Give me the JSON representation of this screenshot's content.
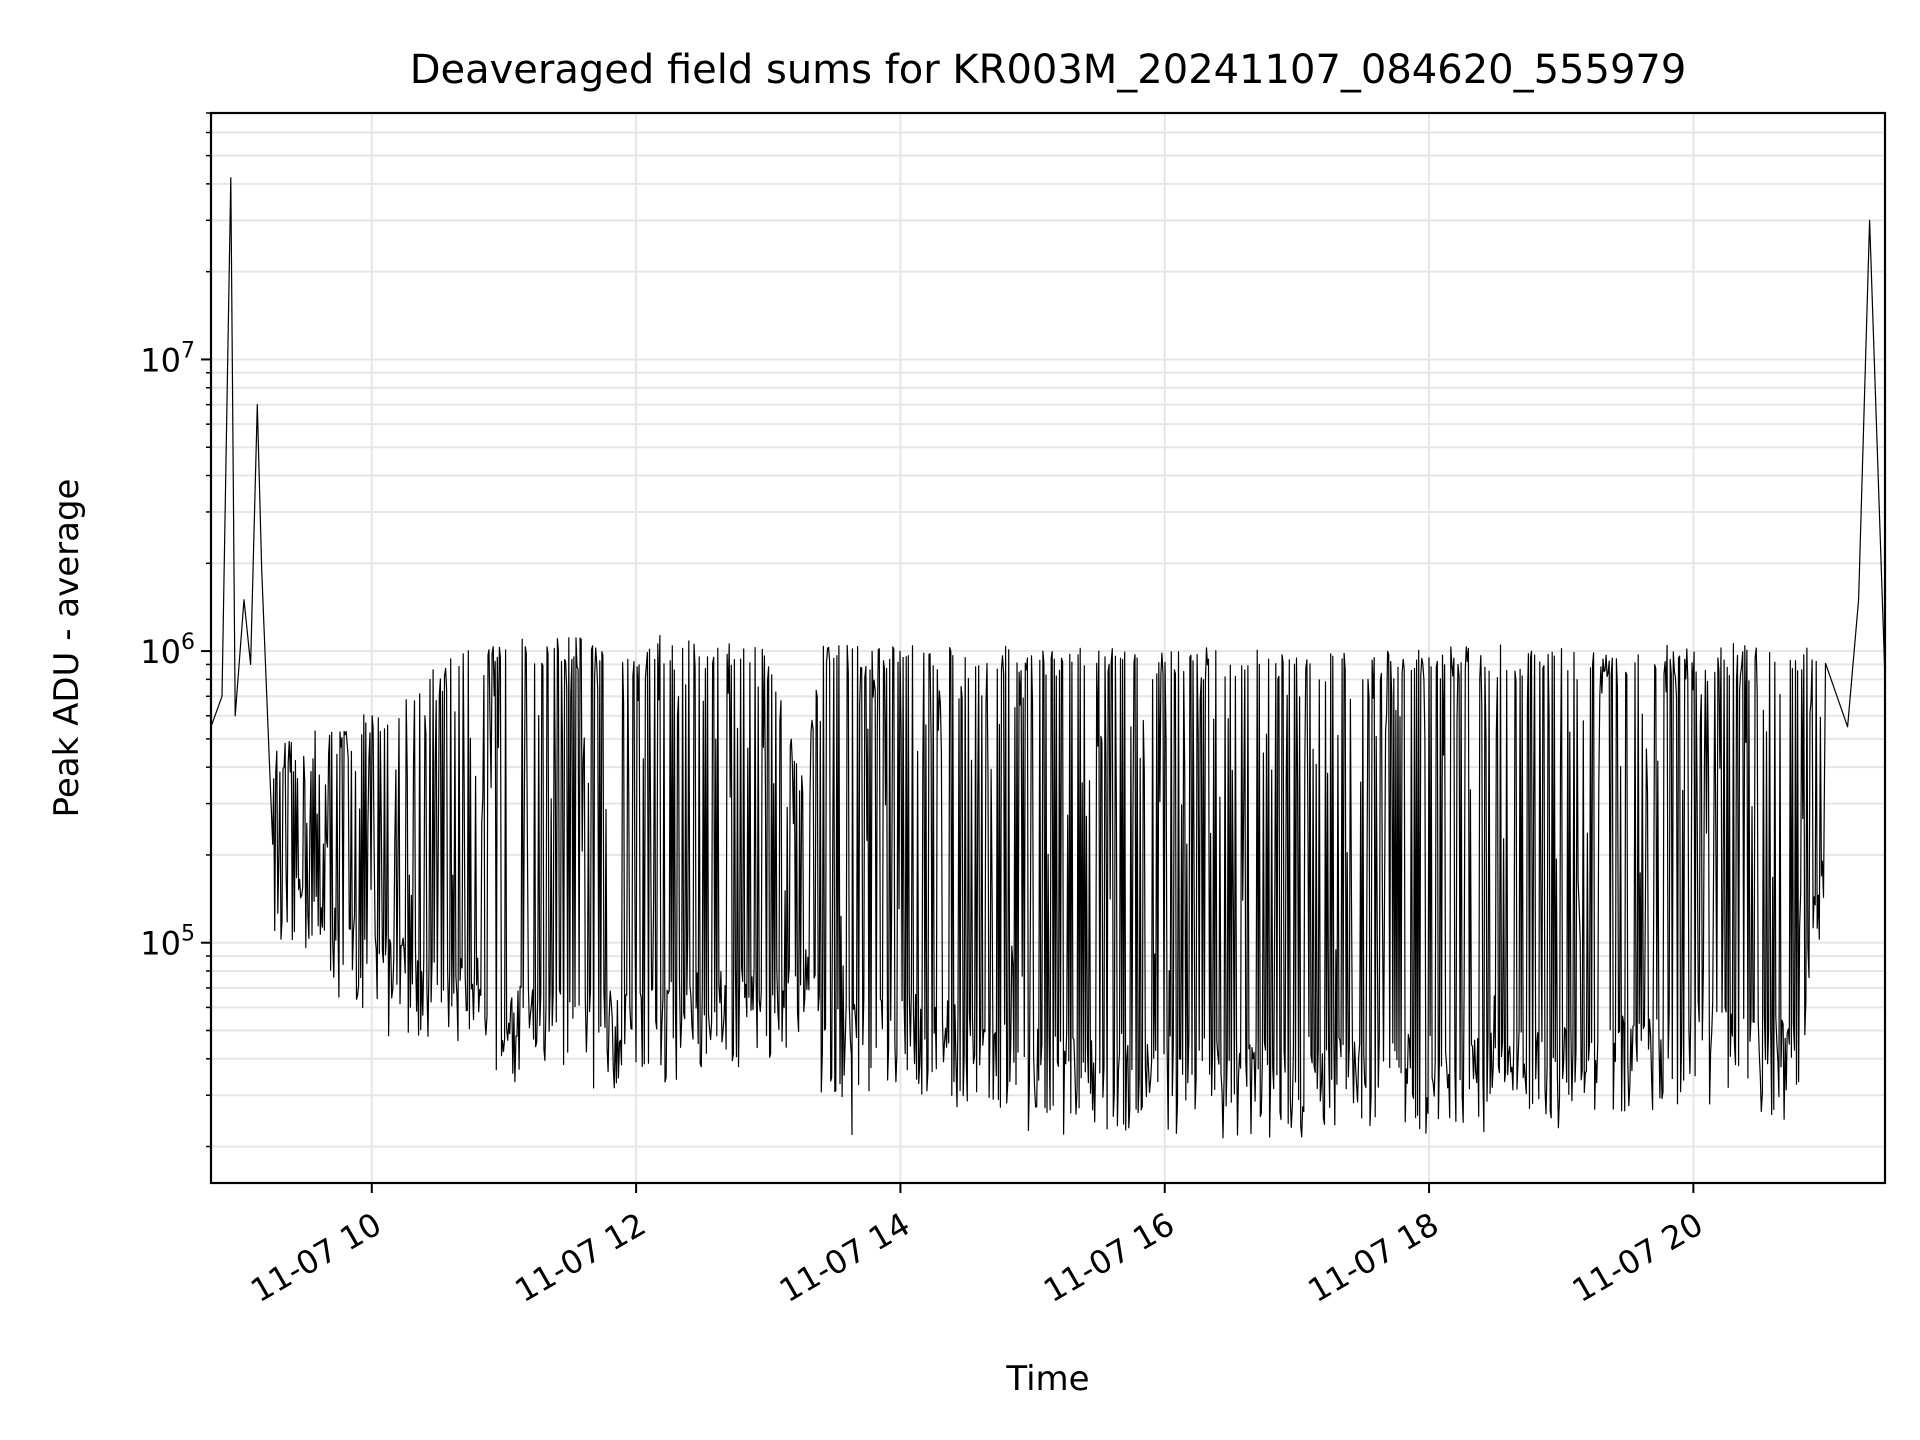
{
  "chart_data": {
    "type": "line",
    "title": "Deaveraged field sums for KR003M_20241107_084620_555979",
    "xlabel": "Time",
    "ylabel": "Peak ADU - average",
    "y_scale": "log",
    "grid": true,
    "legend": "none",
    "line_color": "#000000",
    "grid_color": "#e6e6e6",
    "xlim": [
      "2024-11-07 08:47",
      "2024-11-07 21:27"
    ],
    "ylim": [
      15000,
      70000000
    ],
    "x_ticks": [
      {
        "value": "2024-11-07 10:00",
        "label": "11-07 10"
      },
      {
        "value": "2024-11-07 12:00",
        "label": "11-07 12"
      },
      {
        "value": "2024-11-07 14:00",
        "label": "11-07 14"
      },
      {
        "value": "2024-11-07 16:00",
        "label": "11-07 16"
      },
      {
        "value": "2024-11-07 18:00",
        "label": "11-07 18"
      },
      {
        "value": "2024-11-07 20:00",
        "label": "11-07 20"
      }
    ],
    "y_ticks": [
      {
        "value": 100000,
        "base": "10",
        "exp": "5"
      },
      {
        "value": 1000000,
        "base": "10",
        "exp": "6"
      },
      {
        "value": 10000000,
        "base": "10",
        "exp": "7"
      }
    ],
    "series": [
      {
        "x": [
          "2024-11-07 08:47",
          "2024-11-07 08:52",
          "2024-11-07 08:56",
          "2024-11-07 08:58",
          "2024-11-07 09:02",
          "2024-11-07 09:05",
          "2024-11-07 09:08",
          "2024-11-07 09:10",
          "2024-11-07 09:15",
          "2024-11-07 09:20",
          "2024-11-07 09:30",
          "2024-11-07 09:45",
          "2024-11-07 10:00",
          "2024-11-07 10:15",
          "2024-11-07 10:30",
          "2024-11-07 10:45",
          "2024-11-07 11:00",
          "2024-11-07 11:30",
          "2024-11-07 12:00",
          "2024-11-07 12:30",
          "2024-11-07 13:00",
          "2024-11-07 13:15",
          "2024-11-07 13:30",
          "2024-11-07 13:38",
          "2024-11-07 14:00",
          "2024-11-07 14:30",
          "2024-11-07 15:00",
          "2024-11-07 15:30",
          "2024-11-07 16:00",
          "2024-11-07 16:30",
          "2024-11-07 17:00",
          "2024-11-07 17:30",
          "2024-11-07 18:00",
          "2024-11-07 18:30",
          "2024-11-07 19:00",
          "2024-11-07 19:30",
          "2024-11-07 19:45",
          "2024-11-07 20:00",
          "2024-11-07 20:30",
          "2024-11-07 20:50",
          "2024-11-07 21:00",
          "2024-11-07 21:10",
          "2024-11-07 21:15",
          "2024-11-07 21:20",
          "2024-11-07 21:27"
        ],
        "y": [
          550000,
          700000,
          42000000,
          600000,
          1500000,
          900000,
          7000000,
          1900000,
          400000,
          250000,
          120000,
          150000,
          110000,
          120000,
          130000,
          90000,
          55000,
          60000,
          60000,
          65000,
          90000,
          150000,
          60000,
          22000,
          70000,
          60000,
          45000,
          40000,
          42000,
          43000,
          45000,
          44000,
          47000,
          47000,
          48000,
          50000,
          900000,
          60000,
          45000,
          45000,
          250000,
          550000,
          1500000,
          30000000,
          800000
        ]
      }
    ],
    "envelope": {
      "x": [
        "2024-11-07 09:15",
        "2024-11-07 10:00",
        "2024-11-07 10:45",
        "2024-11-07 11:00",
        "2024-11-07 12:00",
        "2024-11-07 13:00",
        "2024-11-07 13:15",
        "2024-11-07 13:25",
        "2024-11-07 14:00",
        "2024-11-07 15:00",
        "2024-11-07 16:00",
        "2024-11-07 17:00",
        "2024-11-07 18:00",
        "2024-11-07 19:00",
        "2024-11-07 20:00",
        "2024-11-07 20:45",
        "2024-11-07 21:00"
      ],
      "low": [
        150000,
        70000,
        60000,
        45000,
        45000,
        55000,
        70000,
        40000,
        45000,
        32000,
        30000,
        30000,
        31000,
        32000,
        40000,
        35000,
        150000
      ],
      "high": [
        450000,
        600000,
        1000000,
        1050000,
        1100000,
        1050000,
        350000,
        1000000,
        1000000,
        1000000,
        1000000,
        950000,
        1000000,
        1000000,
        1000000,
        1050000,
        950000
      ]
    }
  }
}
